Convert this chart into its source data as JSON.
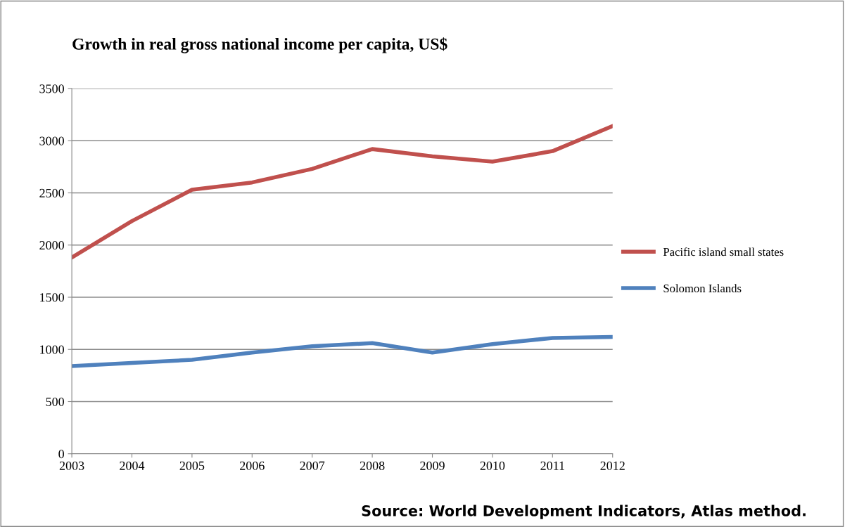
{
  "chart_data": {
    "type": "line",
    "title": "Growth in real gross national income per capita, US$",
    "x": [
      2003,
      2004,
      2005,
      2006,
      2007,
      2008,
      2009,
      2010,
      2011,
      2012
    ],
    "series": [
      {
        "name": "Pacific island small states",
        "color": "#c0504d",
        "values": [
          1880,
          2230,
          2530,
          2600,
          2730,
          2920,
          2850,
          2800,
          2900,
          3140
        ]
      },
      {
        "name": "Solomon Islands",
        "color": "#4f81bd",
        "values": [
          840,
          870,
          900,
          970,
          1030,
          1060,
          970,
          1050,
          1110,
          1120
        ]
      }
    ],
    "xlim": [
      2003,
      2012
    ],
    "xticks": [
      2003,
      2004,
      2005,
      2006,
      2007,
      2008,
      2009,
      2010,
      2011,
      2012
    ],
    "ylim": [
      0,
      3500
    ],
    "yticks": [
      0,
      500,
      1000,
      1500,
      2000,
      2500,
      3000,
      3500
    ],
    "grid": "y",
    "legend": "right",
    "marker": "none",
    "line_style": "solid",
    "annotations": [
      "Source: World Development Indicators, Atlas method."
    ]
  }
}
